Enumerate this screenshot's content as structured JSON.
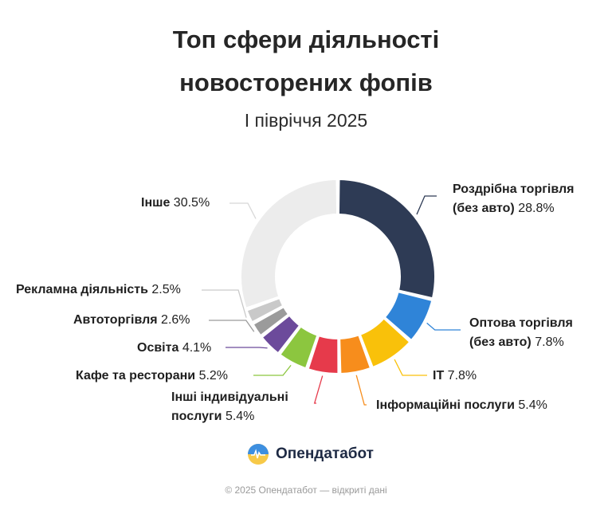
{
  "header": {
    "title_line1": "Топ сфери діяльності",
    "title_line2": "новосторених фопів",
    "subtitle": "І півріччя 2025"
  },
  "chart_data": {
    "type": "pie",
    "variant": "donut",
    "title": "Топ сфери діяльності новосторених фопів",
    "subtitle": "І півріччя 2025",
    "unit": "%",
    "slices": [
      {
        "name": "Роздрібна торгівля (без авто)",
        "value": 28.8,
        "color": "#2e3b55"
      },
      {
        "name": "Оптова торгівля (без авто)",
        "value": 7.8,
        "color": "#2f84d8"
      },
      {
        "name": "IT",
        "value": 7.8,
        "color": "#f9c10a"
      },
      {
        "name": "Інформаційні послуги",
        "value": 5.4,
        "color": "#f78d1c"
      },
      {
        "name": "Інші індивідуальні послуги",
        "value": 5.4,
        "color": "#e63a4b"
      },
      {
        "name": "Кафе та ресторани",
        "value": 5.2,
        "color": "#8cc63f"
      },
      {
        "name": "Освіта",
        "value": 4.1,
        "color": "#6c4a9b"
      },
      {
        "name": "Автоторгівля",
        "value": 2.6,
        "color": "#9b9b9b"
      },
      {
        "name": "Рекламна діяльність",
        "value": 2.5,
        "color": "#c9c9c9"
      },
      {
        "name": "Інше",
        "value": 30.5,
        "color": "#ececec"
      }
    ],
    "labels": [
      {
        "name1": "Роздрібна торгівля",
        "name2": "(без авто)",
        "value": "28.8%"
      },
      {
        "name1": "Оптова торгівля",
        "name2": "(без авто)",
        "value": "7.8%"
      },
      {
        "name1": "IT",
        "value": "7.8%"
      },
      {
        "name1": "Інформаційні послуги",
        "value": "5.4%"
      },
      {
        "name1": "Інші індивідуальні",
        "name2": "послуги",
        "value": "5.4%"
      },
      {
        "name1": "Кафе та ресторани",
        "value": "5.2%"
      },
      {
        "name1": "Освіта",
        "value": "4.1%"
      },
      {
        "name1": "Автоторгівля",
        "value": "2.6%"
      },
      {
        "name1": "Рекламна діяльність",
        "value": "2.5%"
      },
      {
        "name1": "Інше",
        "value": "30.5%"
      }
    ]
  },
  "brand": {
    "name": "Опендатабот"
  },
  "footer": {
    "text": "© 2025 Опендатабот — відкриті дані"
  }
}
